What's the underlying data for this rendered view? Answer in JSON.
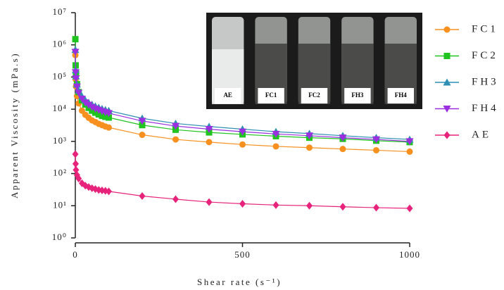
{
  "chart_data": {
    "type": "scatter-line",
    "x_label": "Shear rate (s⁻¹)",
    "y_label": "Apparent Viscosity (mPa.s)",
    "log_y": true,
    "x": [
      0.1,
      1,
      2,
      5,
      10,
      20,
      30,
      40,
      50,
      60,
      70,
      80,
      90,
      100,
      200,
      300,
      400,
      500,
      600,
      700,
      800,
      900,
      1000
    ],
    "xlim": [
      0,
      1000
    ],
    "xticks": [
      0,
      500,
      1000
    ],
    "ylim": [
      1,
      10000000
    ],
    "yticks": [
      {
        "value": 1,
        "label": "10⁰"
      },
      {
        "value": 10,
        "label": "10¹"
      },
      {
        "value": 100,
        "label": "10²"
      },
      {
        "value": 1000,
        "label": "10³"
      },
      {
        "value": 10000,
        "label": "10⁴"
      },
      {
        "value": 100000,
        "label": "10⁵"
      },
      {
        "value": 1000000,
        "label": "10⁶"
      },
      {
        "value": 10000000,
        "label": "10⁷"
      }
    ],
    "legend_position": "right",
    "series": [
      {
        "name": "FC1",
        "color": "#f7901e",
        "marker": "circle",
        "values": [
          480000,
          85000,
          51000,
          25500,
          15200,
          9000,
          6700,
          5400,
          4500,
          4000,
          3500,
          3200,
          2900,
          2700,
          1600,
          1150,
          950,
          800,
          700,
          640,
          580,
          530,
          480
        ]
      },
      {
        "name": "FC2",
        "color": "#1fc41f",
        "marker": "square",
        "values": [
          1500000,
          230000,
          130000,
          60000,
          34000,
          19000,
          14000,
          11000,
          9000,
          7800,
          6900,
          6200,
          5800,
          5500,
          3200,
          2300,
          1900,
          1650,
          1450,
          1300,
          1200,
          1050,
          950
        ]
      },
      {
        "name": "FH3",
        "color": "#2e8fb3",
        "marker": "triangle",
        "values": [
          700000,
          164000,
          106000,
          59000,
          38000,
          25000,
          19000,
          16000,
          14000,
          12400,
          11300,
          10300,
          9600,
          9000,
          5200,
          3600,
          2900,
          2400,
          2000,
          1750,
          1500,
          1300,
          1150
        ]
      },
      {
        "name": "FH4",
        "color": "#9b2fe0",
        "marker": "triangle-down",
        "values": [
          600000,
          140000,
          90000,
          50000,
          32000,
          21000,
          16000,
          13500,
          11600,
          10300,
          9400,
          8600,
          8000,
          7500,
          4300,
          3000,
          2400,
          2000,
          1700,
          1500,
          1300,
          1150,
          1000
        ]
      },
      {
        "name": "AE",
        "color": "#e8237c",
        "marker": "diamond",
        "values": [
          400,
          200,
          130,
          90,
          70,
          50,
          42,
          38,
          35,
          33,
          31,
          30,
          29,
          28,
          20,
          16,
          13,
          11.5,
          10.5,
          10,
          9.3,
          8.7,
          8.3
        ]
      }
    ]
  },
  "inset": {
    "labels": [
      "AE",
      "FC1",
      "FC2",
      "FH3",
      "FH4"
    ]
  }
}
